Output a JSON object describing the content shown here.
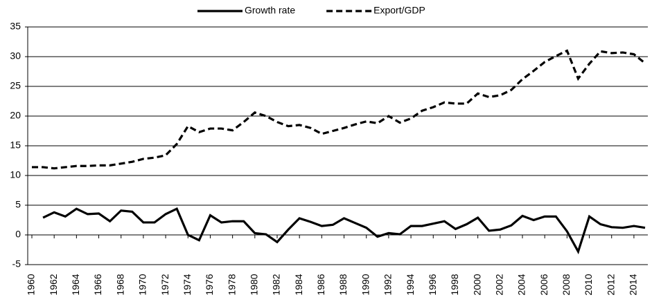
{
  "chart_data": {
    "type": "line",
    "x": [
      1960,
      1961,
      1962,
      1963,
      1964,
      1965,
      1966,
      1967,
      1968,
      1969,
      1970,
      1971,
      1972,
      1973,
      1974,
      1975,
      1976,
      1977,
      1978,
      1979,
      1980,
      1981,
      1982,
      1983,
      1984,
      1985,
      1986,
      1987,
      1988,
      1989,
      1990,
      1991,
      1992,
      1993,
      1994,
      1995,
      1996,
      1997,
      1998,
      1999,
      2000,
      2001,
      2002,
      2003,
      2004,
      2005,
      2006,
      2007,
      2008,
      2009,
      2010,
      2011,
      2012,
      2013,
      2014,
      2015
    ],
    "series": [
      {
        "name": "Growth rate",
        "color": "#000000",
        "dashed": false,
        "values": [
          null,
          2.9,
          3.8,
          3.1,
          4.4,
          3.5,
          3.6,
          2.3,
          4.1,
          3.9,
          2.1,
          2.1,
          3.5,
          4.4,
          0.0,
          -0.9,
          3.3,
          2.1,
          2.3,
          2.3,
          0.3,
          0.1,
          -1.2,
          0.9,
          2.8,
          2.2,
          1.5,
          1.7,
          2.8,
          2.0,
          1.2,
          -0.3,
          0.3,
          0.1,
          1.5,
          1.5,
          1.9,
          2.3,
          1.0,
          1.8,
          2.9,
          0.7,
          0.9,
          1.6,
          3.2,
          2.5,
          3.1,
          3.1,
          0.6,
          -2.8,
          3.1,
          1.8,
          1.3,
          1.2,
          1.5,
          1.2
        ]
      },
      {
        "name": "Export/GDP",
        "color": "#000000",
        "dashed": true,
        "values": [
          11.4,
          11.4,
          11.2,
          11.4,
          11.6,
          11.6,
          11.7,
          11.7,
          12.0,
          12.3,
          12.8,
          13.0,
          13.4,
          15.3,
          18.3,
          17.3,
          17.9,
          17.9,
          17.6,
          19.0,
          20.6,
          20.0,
          19.0,
          18.3,
          18.5,
          18.0,
          17.0,
          17.5,
          18.0,
          18.6,
          19.1,
          18.8,
          20.0,
          18.9,
          19.6,
          20.9,
          21.5,
          22.3,
          22.1,
          22.1,
          23.8,
          23.2,
          23.5,
          24.4,
          26.2,
          27.6,
          29.1,
          30.1,
          31.0,
          26.3,
          28.8,
          30.9,
          30.6,
          30.7,
          30.4,
          28.9
        ]
      }
    ],
    "xlim": [
      1960,
      2015
    ],
    "xticks": [
      1960,
      1962,
      1964,
      1966,
      1968,
      1970,
      1972,
      1974,
      1976,
      1978,
      1980,
      1982,
      1984,
      1986,
      1988,
      1990,
      1992,
      1994,
      1996,
      1998,
      2000,
      2002,
      2004,
      2006,
      2008,
      2010,
      2012,
      2014
    ],
    "ylim": [
      -5,
      35
    ],
    "yticks": [
      -5,
      0,
      5,
      10,
      15,
      20,
      25,
      30,
      35
    ],
    "grid": true,
    "legend": "top"
  }
}
